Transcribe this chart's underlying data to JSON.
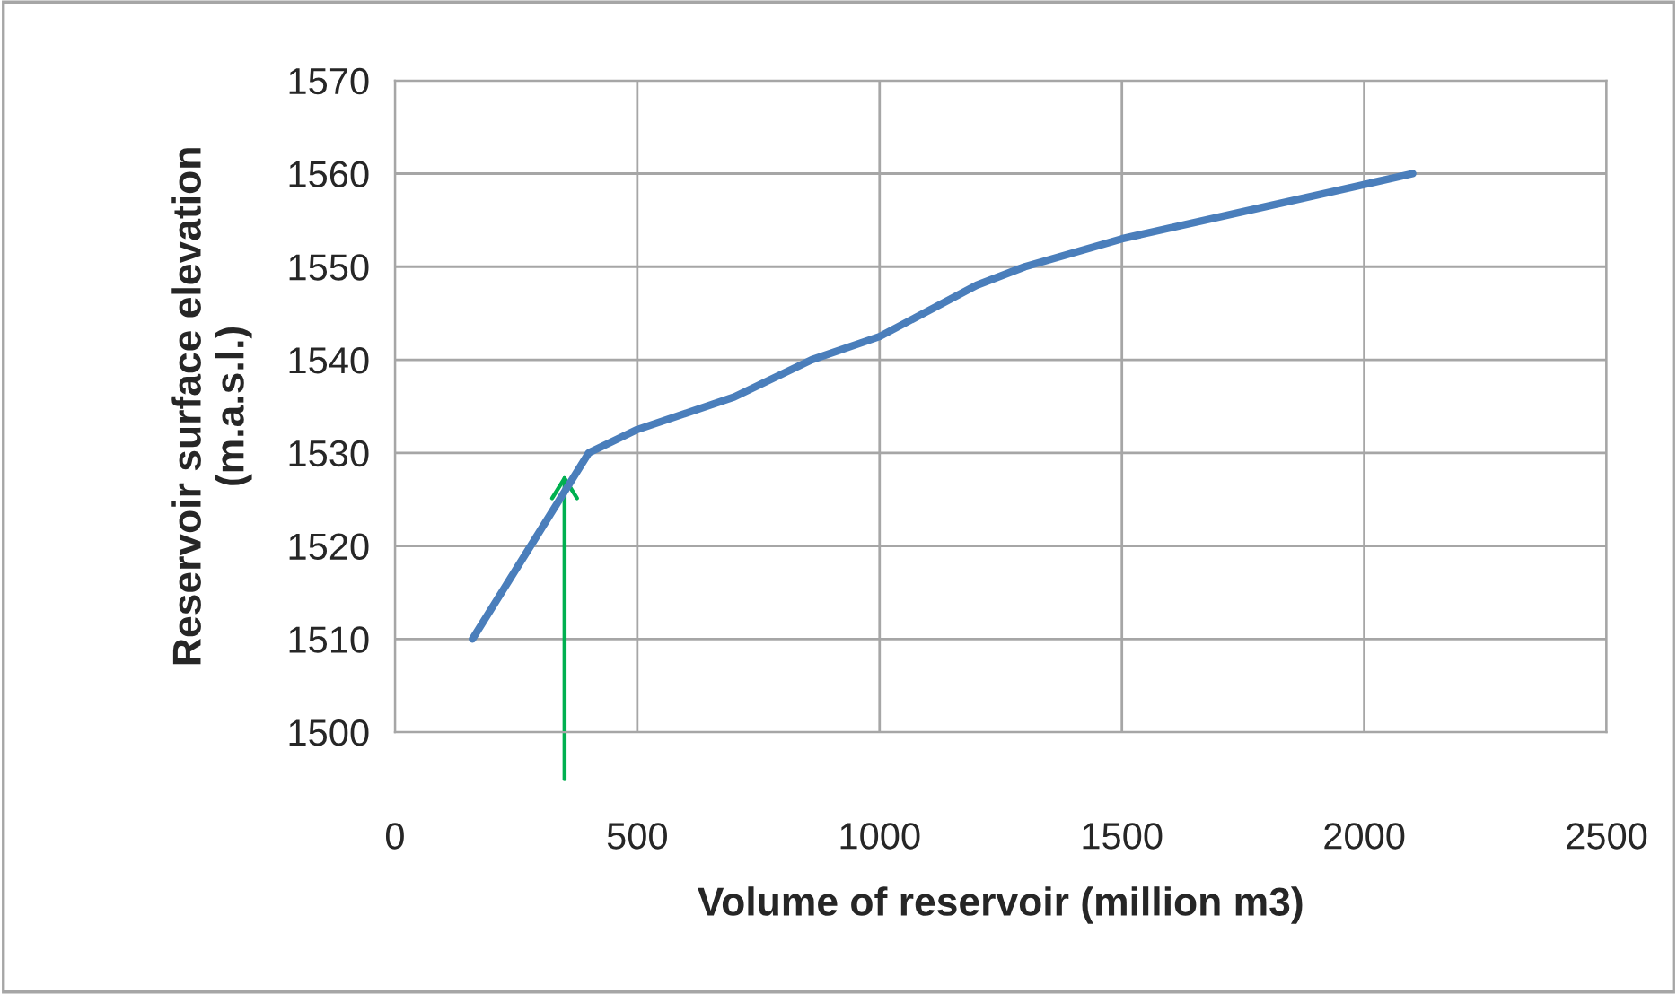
{
  "chart_data": {
    "type": "line",
    "xlabel": "Volume of reservoir (million m3)",
    "ylabel": "Reservoir surface elevation\n(m.a.s.l.)",
    "x": [
      160,
      220,
      280,
      340,
      400,
      500,
      700,
      860,
      1000,
      1200,
      1300,
      1500,
      1800,
      2100
    ],
    "series": [
      {
        "color": "#4a7ebb",
        "values": [
          1510,
          1515,
          1520,
          1525,
          1530,
          1532.5,
          1536,
          1540,
          1542.5,
          1548,
          1550,
          1553,
          1556.5,
          1560
        ]
      }
    ],
    "xlim": [
      0,
      2500
    ],
    "xticks": [
      0,
      500,
      1000,
      1500,
      2000,
      2500
    ],
    "ylim": [
      1500,
      1570
    ],
    "yticks": [
      1500,
      1510,
      1520,
      1530,
      1540,
      1550,
      1560,
      1570
    ],
    "grid": true,
    "legend": false,
    "marker": "none",
    "line_style": "solid"
  }
}
